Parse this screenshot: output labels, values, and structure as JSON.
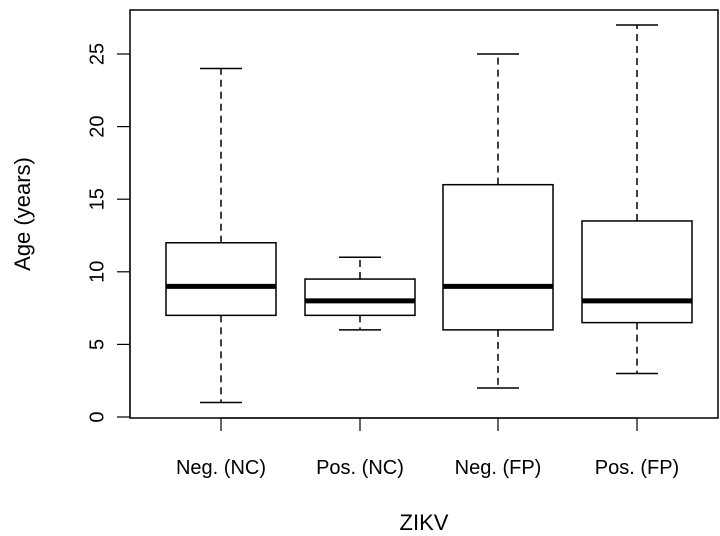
{
  "chart_data": {
    "type": "boxplot",
    "title": "",
    "xlabel": "ZIKV",
    "ylabel": "Age (years)",
    "ylim": [
      0,
      27
    ],
    "yticks": [
      0,
      5,
      10,
      15,
      20,
      25
    ],
    "grid": false,
    "categories": [
      "Neg. (NC)",
      "Pos. (NC)",
      "Neg. (FP)",
      "Pos. (FP)"
    ],
    "boxes": [
      {
        "category": "Neg. (NC)",
        "min": 1,
        "q1": 7,
        "median": 9,
        "q3": 12,
        "max": 24
      },
      {
        "category": "Pos. (NC)",
        "min": 6,
        "q1": 7,
        "median": 8,
        "q3": 9.5,
        "max": 11
      },
      {
        "category": "Neg. (FP)",
        "min": 2,
        "q1": 6,
        "median": 9,
        "q3": 16,
        "max": 25
      },
      {
        "category": "Pos. (FP)",
        "min": 3,
        "q1": 6.5,
        "median": 8,
        "q3": 13.5,
        "max": 27
      }
    ],
    "colors": {
      "box_fill": "#ffffff",
      "stroke": "#000000"
    }
  }
}
